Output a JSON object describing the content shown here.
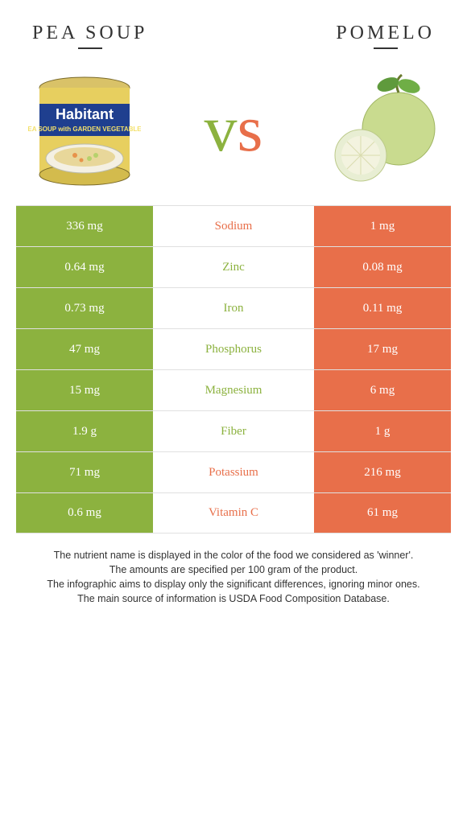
{
  "colors": {
    "left": "#8cb23f",
    "right": "#e86f4a",
    "text_dark": "#333333",
    "row_border": "#e0e0e0"
  },
  "header": {
    "left_title": "Pea soup",
    "right_title": "Pomelo"
  },
  "vs_text": "vs",
  "nutrients": [
    {
      "name": "Sodium",
      "left": "336 mg",
      "right": "1 mg",
      "winner": "right"
    },
    {
      "name": "Zinc",
      "left": "0.64 mg",
      "right": "0.08 mg",
      "winner": "left"
    },
    {
      "name": "Iron",
      "left": "0.73 mg",
      "right": "0.11 mg",
      "winner": "left"
    },
    {
      "name": "Phosphorus",
      "left": "47 mg",
      "right": "17 mg",
      "winner": "left"
    },
    {
      "name": "Magnesium",
      "left": "15 mg",
      "right": "6 mg",
      "winner": "left"
    },
    {
      "name": "Fiber",
      "left": "1.9 g",
      "right": "1 g",
      "winner": "left"
    },
    {
      "name": "Potassium",
      "left": "71 mg",
      "right": "216 mg",
      "winner": "right"
    },
    {
      "name": "Vitamin C",
      "left": "0.6 mg",
      "right": "61 mg",
      "winner": "right"
    }
  ],
  "footnotes": [
    "The nutrient name is displayed in the color of the food we considered as 'winner'.",
    "The amounts are specified per 100 gram of the product.",
    "The infographic aims to display only the significant differences, ignoring minor ones.",
    "The main source of information is USDA Food Composition Database."
  ]
}
